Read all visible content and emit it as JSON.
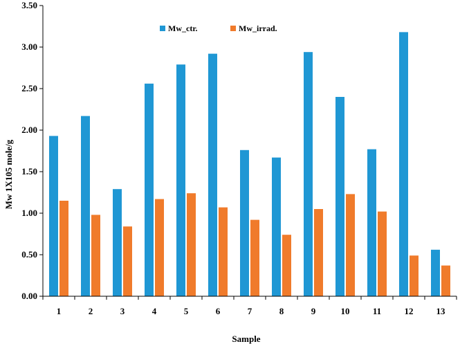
{
  "chart_data": {
    "type": "bar",
    "title": "",
    "xlabel": "Sample",
    "ylabel": "Mw 1X105 mole/g",
    "ylim": [
      0,
      3.5
    ],
    "ytick_step": 0.5,
    "ytick_labels": [
      "0.00",
      "0.50",
      "1.00",
      "1.50",
      "2.00",
      "2.50",
      "3.00",
      "3.50"
    ],
    "categories": [
      "1",
      "2",
      "3",
      "4",
      "5",
      "6",
      "7",
      "8",
      "9",
      "10",
      "11",
      "12",
      "13"
    ],
    "grid": false,
    "legend_position": "top-center",
    "series": [
      {
        "name": "Mw_ctr.",
        "color": "#1f97d4",
        "values": [
          1.93,
          2.17,
          1.29,
          2.56,
          2.79,
          2.92,
          1.76,
          1.67,
          2.94,
          2.4,
          1.77,
          3.18,
          0.56
        ]
      },
      {
        "name": "Mw_irrad.",
        "color": "#f07b2b",
        "values": [
          1.15,
          0.98,
          0.84,
          1.17,
          1.24,
          1.07,
          0.92,
          0.74,
          1.05,
          1.23,
          1.02,
          0.49,
          0.37
        ]
      }
    ]
  }
}
